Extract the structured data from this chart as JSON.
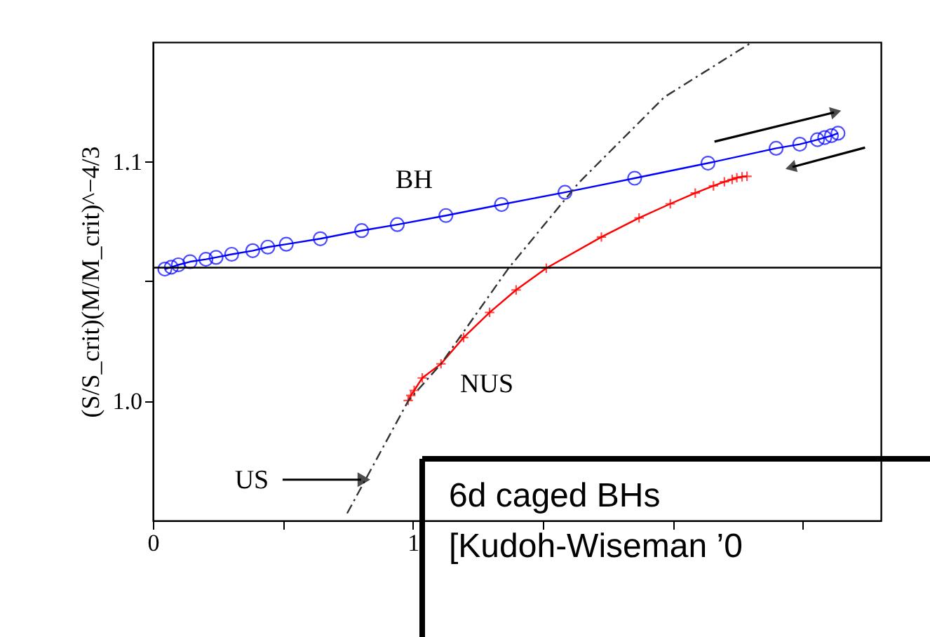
{
  "chart_data": {
    "type": "line",
    "ylabel": "(S/S_crit)(M/M_crit)^−4/3",
    "xlim": [
      0,
      2.8
    ],
    "xticks": [
      0,
      {
        "value": 0.5,
        "label": null
      },
      1,
      {
        "value": 1.5,
        "label": null
      },
      {
        "value": 2,
        "label": null
      },
      {
        "value": 2.5,
        "label": null
      }
    ],
    "ylim": [
      0.95,
      1.15
    ],
    "yticks": [
      {
        "value": 1.0,
        "label": "1.0"
      },
      {
        "value": 1.05,
        "label": null
      },
      {
        "value": 1.1,
        "label": "1.1"
      }
    ],
    "grid": false,
    "series": [
      {
        "name": "BH",
        "color": "#0000ff",
        "marker": "circle",
        "line_style": "solid",
        "x": [
          0.046,
          0.071,
          0.098,
          0.143,
          0.204,
          0.243,
          0.303,
          0.384,
          0.442,
          0.513,
          0.644,
          0.803,
          0.94,
          1.127,
          1.341,
          1.585,
          1.853,
          2.135,
          2.397,
          2.488,
          2.556,
          2.584,
          2.61,
          2.635
        ],
        "values": [
          1.0551,
          1.0559,
          1.0569,
          1.0582,
          1.0592,
          1.06,
          1.0613,
          1.0628,
          1.0643,
          1.0655,
          1.0678,
          1.0712,
          1.0737,
          1.0775,
          1.0821,
          1.0872,
          1.0931,
          1.0994,
          1.1056,
          1.1073,
          1.1092,
          1.1101,
          1.1109,
          1.1119
        ]
      },
      {
        "name": "NUS",
        "color": "#ff0000",
        "marker": "cross",
        "line_style": "solid",
        "x": [
          0.982,
          0.992,
          1.005,
          1.036,
          1.108,
          1.195,
          1.295,
          1.397,
          1.513,
          1.725,
          1.87,
          1.99,
          2.086,
          2.156,
          2.198,
          2.228,
          2.246,
          2.266,
          2.285
        ],
        "values": [
          1.0002,
          1.0023,
          1.0044,
          1.0096,
          1.0155,
          1.0265,
          1.037,
          1.0464,
          1.0555,
          1.0685,
          1.0765,
          1.0824,
          1.0869,
          1.0899,
          1.0916,
          1.0926,
          1.0933,
          1.0937,
          1.0939
        ]
      },
      {
        "name": "US",
        "color": "#333333",
        "marker": "none",
        "line_style": "dashed",
        "x": [
          0.747,
          0.982,
          1.108,
          1.368,
          1.638,
          1.967,
          2.305
        ],
        "values": [
          0.953,
          1.0,
          1.0155,
          1.0555,
          1.0912,
          1.127,
          1.15
        ]
      }
    ],
    "ref_lines": [
      {
        "axis": "y",
        "value": 1.0557,
        "color": "#000000",
        "line_style": "solid"
      }
    ],
    "annotations": [
      "6d caged BHs",
      "[Kudoh-Wiseman ’0"
    ]
  }
}
